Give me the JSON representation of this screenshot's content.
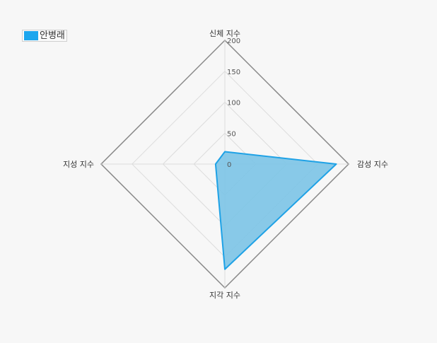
{
  "chart_data": {
    "type": "radar",
    "title": "",
    "axes": [
      "신체 지수",
      "감성 지수",
      "지각 지수",
      "지성 지수"
    ],
    "series": [
      {
        "name": "안병래",
        "values": [
          20,
          180,
          170,
          15
        ]
      }
    ],
    "rlim": [
      0,
      200
    ],
    "ticks": [
      0,
      50,
      100,
      150,
      200
    ],
    "legend_position": "top-left",
    "grid": true,
    "colors": {
      "series_fill": "#7ec4e6",
      "series_stroke": "#1fa2e6",
      "legend_swatch": "#1ca6ee",
      "outer_frame": "#888888",
      "grid": "#dddddd"
    }
  }
}
